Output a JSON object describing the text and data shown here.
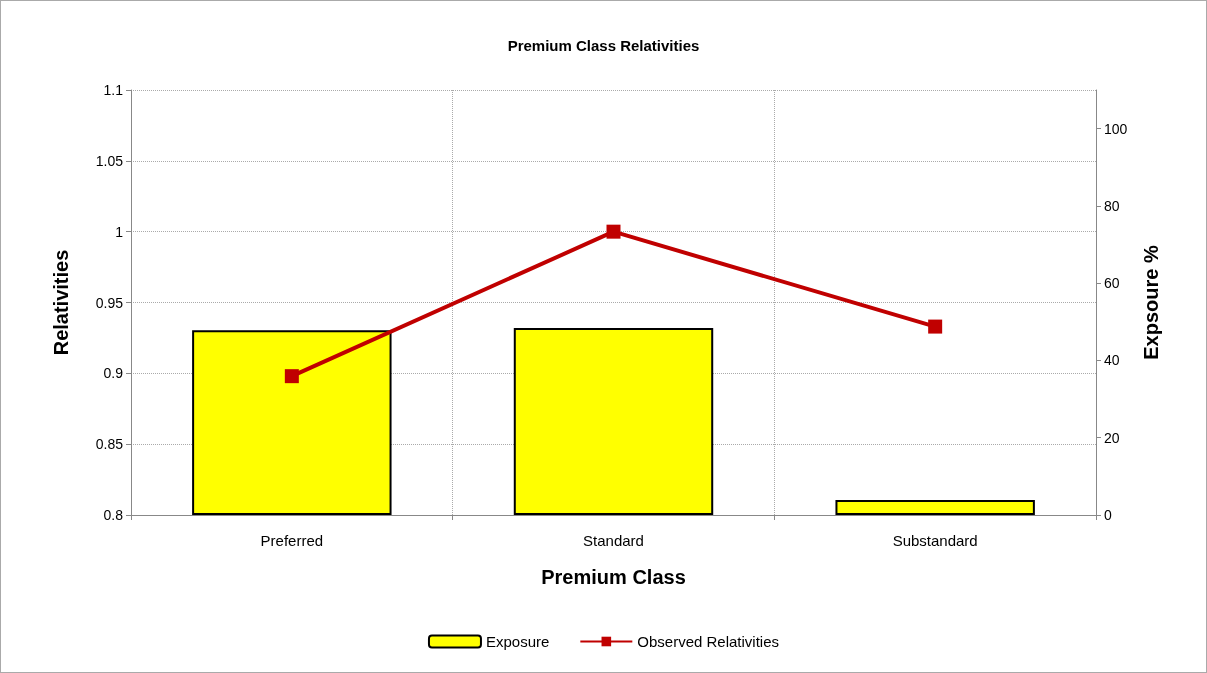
{
  "chart_data": {
    "type": "bar",
    "title": "Premium Class Relativities",
    "xlabel": "Premium Class",
    "ylabel": "Relativities",
    "y2label": "Expsoure %",
    "categories": [
      "Preferred",
      "Standard",
      "Substandard"
    ],
    "series": [
      {
        "name": "Exposure",
        "axis": "y2",
        "color": "#ffff00",
        "values": [
          47.8,
          48.4,
          3.9
        ]
      },
      {
        "name": "Observed Relativities",
        "type": "line",
        "axis": "y",
        "color": "#c00000",
        "marker": "square",
        "values": [
          0.898,
          1.0,
          0.933
        ]
      }
    ],
    "ylim": [
      0.8,
      1.1
    ],
    "yticks": [
      0.8,
      0.85,
      0.9,
      0.95,
      1,
      1.05,
      1.1
    ],
    "y2lim": [
      0,
      110
    ],
    "y2ticks": [
      0,
      20,
      40,
      60,
      80,
      100
    ],
    "grid": true,
    "legend": "bottom"
  }
}
